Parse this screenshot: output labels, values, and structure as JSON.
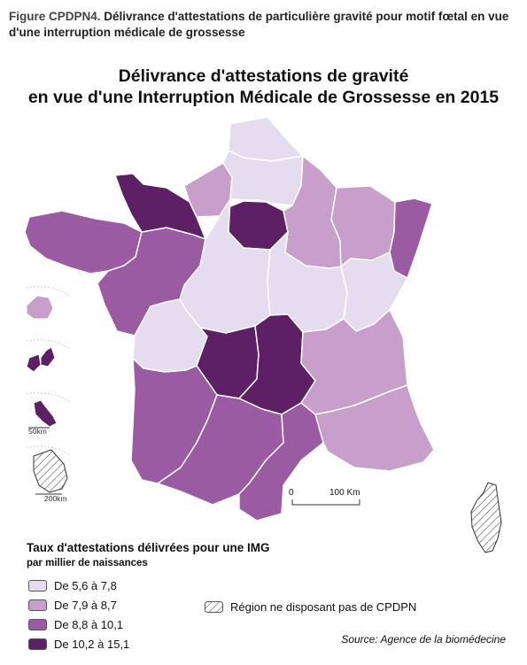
{
  "caption": {
    "prefix": "Figure CPDPN4.",
    "text": " Délivrance d'attestations de particulière gravité pour motif fœtal en vue d'une interruption médicale de grossesse"
  },
  "map_title": {
    "line1": "Délivrance d'attestations de gravité",
    "line2": "en vue d'une Interruption Médicale de Grossesse en 2015"
  },
  "colors": {
    "class1": "#e6dcf0",
    "class2": "#c79fca",
    "class3": "#9a5ba3",
    "class4": "#5e2065",
    "nodata": "#ffffff",
    "border": "#ffffff"
  },
  "legend": {
    "title": "Taux d'attestations délivrées pour une IMG",
    "subtitle": "par millier de naissances",
    "classes": [
      {
        "label": "De 5,6 à 7,8",
        "color": "#e6dcf0"
      },
      {
        "label": "De 7,9 à 8,7",
        "color": "#c79fca"
      },
      {
        "label": "De 8,8 à 10,1",
        "color": "#9a5ba3"
      },
      {
        "label": "De 10,2 à 15,1",
        "color": "#5e2065"
      }
    ],
    "nodata_label": "Région ne disposant pas de CPDPN"
  },
  "scale_bar": {
    "start_label": "0",
    "end_label": "100 Km"
  },
  "inset_scales": {
    "small": "50km",
    "large": "200km"
  },
  "source": "Source: Agence de la biomédecine"
}
